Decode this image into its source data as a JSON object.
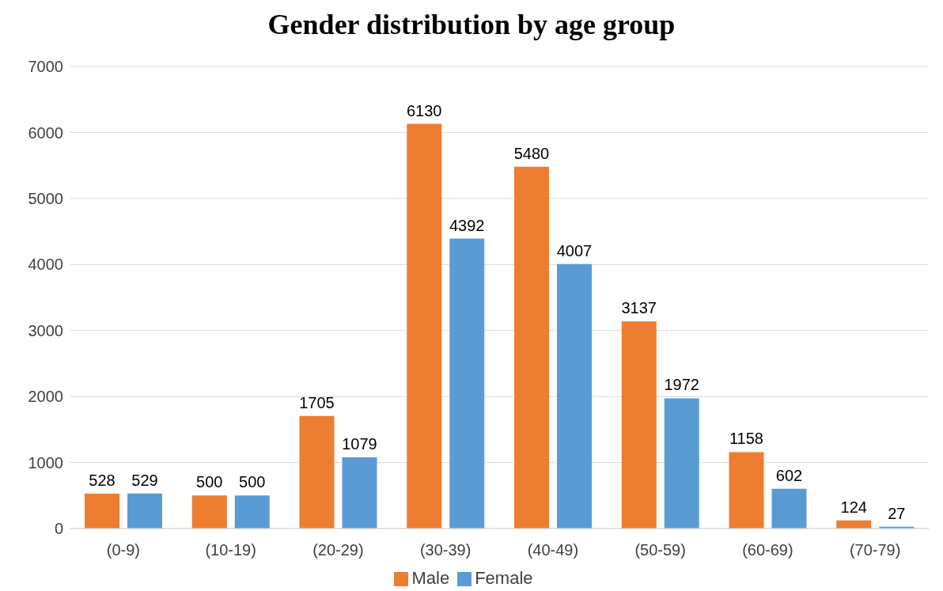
{
  "chart_data": {
    "type": "bar",
    "title": "Gender distribution by age group",
    "categories": [
      "(0-9)",
      "(10-19)",
      "(20-29)",
      "(30-39)",
      "(40-49)",
      "(50-59)",
      "(60-69)",
      "(70-79)"
    ],
    "series": [
      {
        "name": "Male",
        "color": "#ed7d31",
        "values": [
          528,
          500,
          1705,
          6130,
          5480,
          3137,
          1158,
          124
        ]
      },
      {
        "name": "Female",
        "color": "#5b9bd5",
        "values": [
          529,
          500,
          1079,
          4392,
          4007,
          1972,
          602,
          27
        ]
      }
    ],
    "ylim": [
      0,
      7000
    ],
    "yticks": [
      0,
      1000,
      2000,
      3000,
      4000,
      5000,
      6000,
      7000
    ],
    "grid": "y",
    "legend": "bottom",
    "data_labels": true
  }
}
